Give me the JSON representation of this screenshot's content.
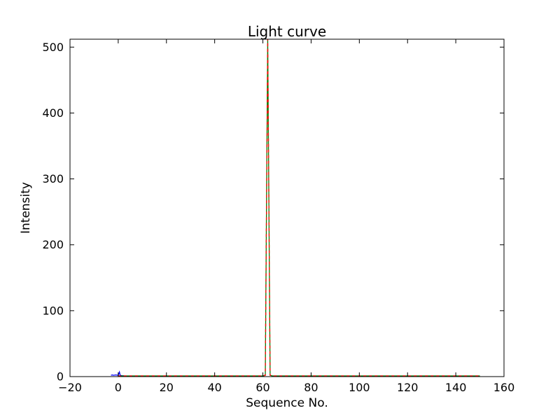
{
  "figure": {
    "background": "#ffffff",
    "title": "Light curve",
    "xlabel": "Sequence No.",
    "ylabel": "Intensity"
  },
  "chart_data": {
    "type": "line",
    "title": "Light curve",
    "xlabel": "Sequence No.",
    "ylabel": "Intensity",
    "xlim": [
      -20,
      160
    ],
    "ylim": [
      0,
      512
    ],
    "grid": false,
    "legend": null,
    "axis_color": "#000000",
    "tick_direction": "in",
    "tick_length": 6,
    "xticks": {
      "values": [
        -20,
        0,
        20,
        40,
        60,
        80,
        100,
        120,
        140,
        160
      ],
      "labels": [
        "−20",
        "0",
        "20",
        "40",
        "60",
        "80",
        "100",
        "120",
        "140",
        "160"
      ]
    },
    "yticks": {
      "values": [
        0,
        100,
        200,
        300,
        400,
        500
      ],
      "labels": [
        "0",
        "100",
        "200",
        "300",
        "400",
        "500"
      ]
    },
    "series": [
      {
        "name": "blue-line",
        "color": "#0000ff",
        "style": "solid",
        "points": [
          [
            -3,
            2
          ],
          [
            -2.5,
            2.5
          ],
          [
            -2,
            2
          ],
          [
            -1,
            2.5
          ],
          [
            0,
            2
          ],
          [
            0.5,
            7
          ],
          [
            0.8,
            2
          ],
          [
            1.5,
            1.5
          ],
          [
            2.5,
            1
          ]
        ]
      },
      {
        "name": "green-line",
        "color": "#007f00",
        "style": "solid",
        "points": [
          [
            0,
            1
          ],
          [
            60,
            1
          ],
          [
            61,
            2
          ],
          [
            62,
            512
          ],
          [
            63,
            2
          ],
          [
            64,
            1
          ],
          [
            150,
            1
          ]
        ]
      },
      {
        "name": "red-dashed-line",
        "color": "#ff0000",
        "style": "dashed",
        "points": [
          [
            0,
            1
          ],
          [
            60,
            1
          ],
          [
            61,
            2
          ],
          [
            62,
            512
          ],
          [
            63,
            2
          ],
          [
            64,
            1
          ],
          [
            150,
            1
          ]
        ]
      }
    ]
  }
}
